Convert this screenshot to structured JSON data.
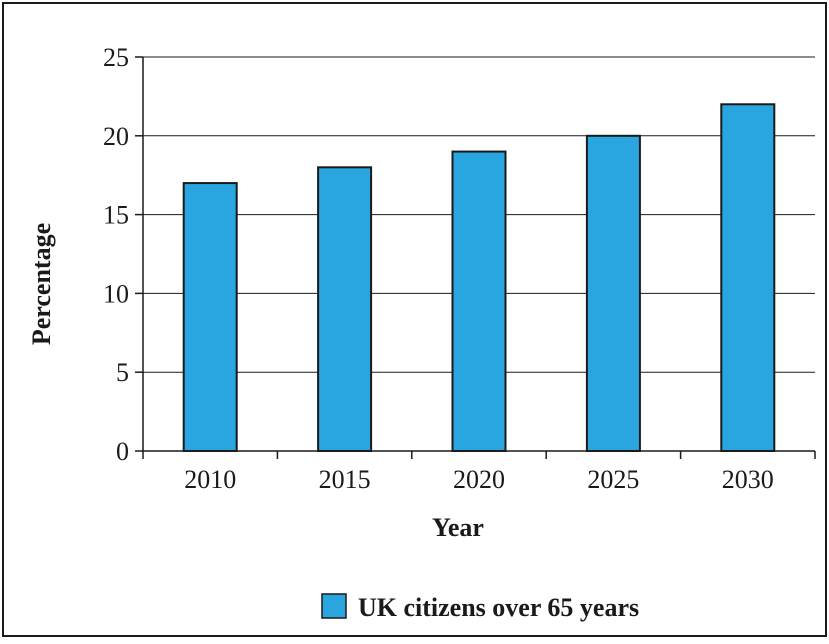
{
  "chart_data": {
    "type": "bar",
    "title": "",
    "xlabel": "Year",
    "ylabel": "Percentage",
    "categories": [
      "2010",
      "2015",
      "2020",
      "2025",
      "2030"
    ],
    "series": [
      {
        "name": "UK citizens over 65 years",
        "values": [
          17,
          18,
          19,
          20,
          22
        ]
      }
    ],
    "ylim": [
      0,
      25
    ],
    "yticks": [
      0,
      5,
      10,
      15,
      20,
      25
    ],
    "grid": true,
    "legend_position": "bottom-center",
    "bar_color": "#29a6df",
    "bar_border_color": "#1a1a1a"
  }
}
